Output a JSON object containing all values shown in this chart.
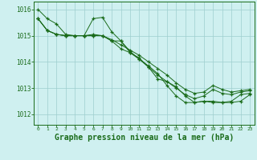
{
  "background_color": "#cff0f0",
  "grid_color": "#9ecece",
  "line_color": "#1a6b1a",
  "marker_color": "#1a6b1a",
  "xlabel": "Graphe pression niveau de la mer (hPa)",
  "xlabel_fontsize": 7,
  "ylabel_ticks": [
    1012,
    1013,
    1014,
    1015,
    1016
  ],
  "xlim": [
    -0.5,
    23.5
  ],
  "ylim": [
    1011.6,
    1016.3
  ],
  "xticks": [
    0,
    1,
    2,
    3,
    4,
    5,
    6,
    7,
    8,
    9,
    10,
    11,
    12,
    13,
    14,
    15,
    16,
    17,
    18,
    19,
    20,
    21,
    22,
    23
  ],
  "series": [
    [
      1016.0,
      1015.65,
      1015.45,
      1015.05,
      1015.0,
      1015.0,
      1015.05,
      1015.0,
      1014.85,
      1014.65,
      1014.45,
      1014.25,
      1014.0,
      1013.75,
      1013.5,
      1013.2,
      1012.95,
      1012.8,
      1012.85,
      1013.1,
      1012.95,
      1012.85,
      1012.9,
      1012.95
    ],
    [
      1015.65,
      1015.2,
      1015.05,
      1015.0,
      1015.0,
      1015.0,
      1015.65,
      1015.7,
      1015.15,
      1014.8,
      1014.4,
      1014.1,
      1013.85,
      1013.55,
      1013.1,
      1012.7,
      1012.45,
      1012.45,
      1012.5,
      1012.45,
      1012.45,
      1012.5,
      1012.75,
      1012.8
    ],
    [
      1015.65,
      1015.2,
      1015.05,
      1015.0,
      1015.0,
      1015.0,
      1015.0,
      1015.0,
      1014.8,
      1014.8,
      1014.35,
      1014.1,
      1013.8,
      1013.35,
      1013.25,
      1013.05,
      1012.7,
      1012.45,
      1012.5,
      1012.5,
      1012.45,
      1012.45,
      1012.5,
      1012.75
    ],
    [
      1015.65,
      1015.2,
      1015.05,
      1015.0,
      1015.0,
      1015.0,
      1015.0,
      1015.0,
      1014.8,
      1014.5,
      1014.35,
      1014.15,
      1013.8,
      1013.5,
      1013.25,
      1013.0,
      1012.75,
      1012.6,
      1012.7,
      1012.95,
      1012.8,
      1012.75,
      1012.85,
      1012.9
    ]
  ]
}
